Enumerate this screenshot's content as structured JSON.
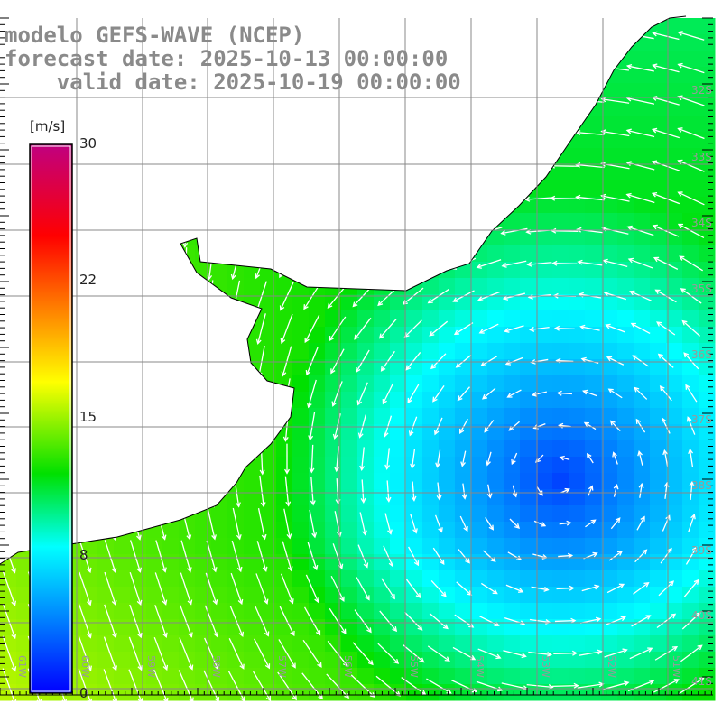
{
  "title": {
    "model": "modelo GEFS-WAVE (NCEP)",
    "forecast": "forecast date: 2025-10-13 00:00:00",
    "valid": "    valid date: 2025-10-19 00:00:00"
  },
  "colorbar": {
    "unit": "[m/s]",
    "ticks": [
      "30",
      "22",
      "15",
      "8",
      "0"
    ],
    "tick_values": [
      30,
      22,
      15,
      8,
      0
    ],
    "stops": [
      {
        "v": 0,
        "c": "#0000ff"
      },
      {
        "v": 4,
        "c": "#0080ff"
      },
      {
        "v": 8,
        "c": "#00ffff"
      },
      {
        "v": 12,
        "c": "#00e000"
      },
      {
        "v": 17,
        "c": "#ffff00"
      },
      {
        "v": 21,
        "c": "#ff8000"
      },
      {
        "v": 25,
        "c": "#ff0000"
      },
      {
        "v": 30,
        "c": "#c00080"
      }
    ]
  },
  "axes": {
    "longitudes": [
      "61W",
      "60W",
      "59W",
      "58W",
      "57W",
      "56W",
      "55W",
      "54W",
      "53W",
      "52W",
      "51W"
    ],
    "latitudes": [
      "32S",
      "33S",
      "34S",
      "35S",
      "36S",
      "37S",
      "38S",
      "39S",
      "40S",
      "41S"
    ]
  },
  "field": {
    "low_center_speed": 2,
    "max_speed": 12
  }
}
